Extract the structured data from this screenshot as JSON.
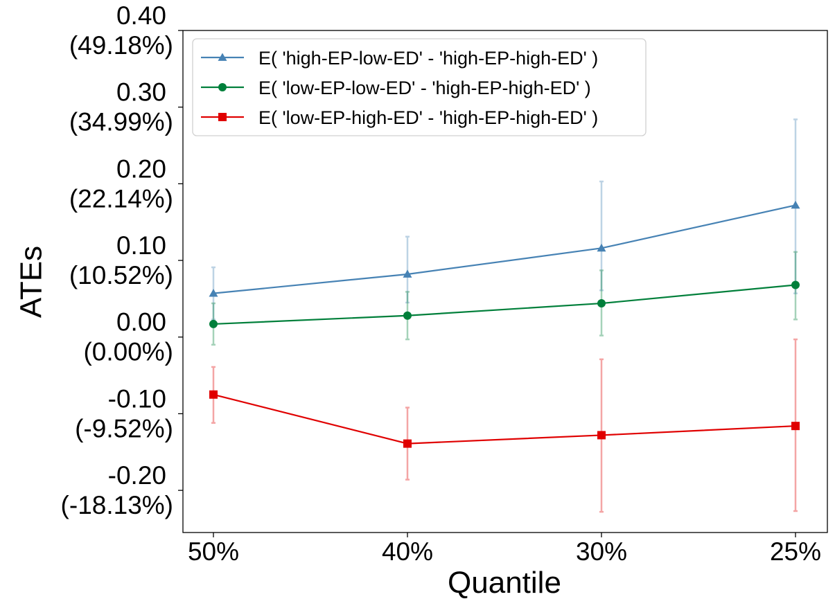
{
  "chart_data": {
    "type": "line",
    "xlabel": "Quantile",
    "ylabel": "ATEs",
    "categories": [
      "50%",
      "40%",
      "30%",
      "25%"
    ],
    "ylim": [
      -0.255,
      0.4
    ],
    "yticks": [
      {
        "value": 0.4,
        "label": "0.40",
        "sublabel": "(49.18%)"
      },
      {
        "value": 0.3,
        "label": "0.30",
        "sublabel": "(34.99%)"
      },
      {
        "value": 0.2,
        "label": "0.20",
        "sublabel": "(22.14%)"
      },
      {
        "value": 0.1,
        "label": "0.10",
        "sublabel": "(10.52%)"
      },
      {
        "value": 0.0,
        "label": "0.00",
        "sublabel": "(0.00%)"
      },
      {
        "value": -0.1,
        "label": "-0.10",
        "sublabel": "(-9.52%)"
      },
      {
        "value": -0.2,
        "label": "-0.20",
        "sublabel": "(-18.13%)"
      }
    ],
    "grid": false,
    "legend_position": "top-left",
    "series": [
      {
        "name": "E( 'high-EP-low-ED' - 'high-EP-high-ED' )",
        "color": "#4682b4",
        "marker": "triangle",
        "values": [
          0.057,
          0.082,
          0.116,
          0.172
        ],
        "err_low": [
          0.023,
          0.045,
          0.061,
          0.057
        ],
        "err_high": [
          0.091,
          0.131,
          0.203,
          0.284
        ]
      },
      {
        "name": "E( 'low-EP-low-ED' - 'high-EP-high-ED' )",
        "color": "#007f3a",
        "marker": "circle",
        "values": [
          0.017,
          0.028,
          0.044,
          0.068
        ],
        "err_low": [
          -0.01,
          -0.003,
          0.002,
          0.023
        ],
        "err_high": [
          0.044,
          0.059,
          0.087,
          0.111
        ]
      },
      {
        "name": "E( 'low-EP-high-ED' - 'high-EP-high-ED' )",
        "color": "#e00000",
        "marker": "square",
        "values": [
          -0.075,
          -0.139,
          -0.128,
          -0.116
        ],
        "err_low": [
          -0.112,
          -0.186,
          -0.228,
          -0.227
        ],
        "err_high": [
          -0.039,
          -0.092,
          -0.029,
          -0.003
        ]
      }
    ]
  }
}
